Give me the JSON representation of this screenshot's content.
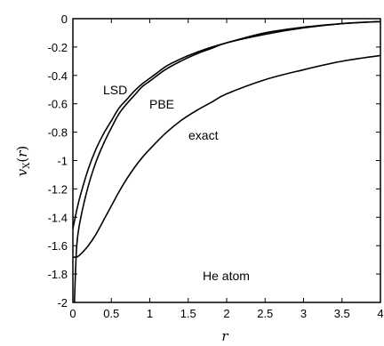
{
  "chart_data": {
    "type": "line",
    "xlabel": "r",
    "ylabel": "v_X(r)",
    "xlim": [
      0,
      4
    ],
    "ylim": [
      -2,
      0
    ],
    "grid": false,
    "legend": "none",
    "x_ticks": [
      "0",
      "0.5",
      "1",
      "1.5",
      "2",
      "2.5",
      "3",
      "3.5",
      "4"
    ],
    "y_ticks": [
      "0",
      "-0.2",
      "-0.4",
      "-0.6",
      "-0.8",
      "-1",
      "-1.2",
      "-1.4",
      "-1.6",
      "-1.8",
      "-2"
    ],
    "series": [
      {
        "name": "LSD",
        "x": [
          0,
          0.05,
          0.1,
          0.2,
          0.3,
          0.4,
          0.5,
          0.6,
          0.7,
          0.8,
          0.9,
          1.0,
          1.1,
          1.2,
          1.3,
          1.5,
          1.75,
          2.0,
          2.5,
          3.0,
          3.5,
          4.0
        ],
        "y": [
          -1.48,
          -1.35,
          -1.24,
          -1.06,
          -0.92,
          -0.81,
          -0.72,
          -0.63,
          -0.57,
          -0.51,
          -0.46,
          -0.42,
          -0.38,
          -0.34,
          -0.31,
          -0.26,
          -0.21,
          -0.17,
          -0.1,
          -0.06,
          -0.035,
          -0.02
        ]
      },
      {
        "name": "PBE",
        "x": [
          0.02,
          0.05,
          0.1,
          0.2,
          0.3,
          0.4,
          0.5,
          0.6,
          0.7,
          0.8,
          0.9,
          1.0,
          1.2,
          1.4,
          1.6,
          1.8,
          2.0,
          2.5,
          3.0,
          3.5,
          4.0
        ],
        "y": [
          -2.0,
          -1.6,
          -1.41,
          -1.18,
          -1.01,
          -0.88,
          -0.77,
          -0.67,
          -0.6,
          -0.54,
          -0.48,
          -0.44,
          -0.36,
          -0.3,
          -0.25,
          -0.21,
          -0.17,
          -0.11,
          -0.065,
          -0.035,
          -0.02
        ]
      },
      {
        "name": "exact",
        "x": [
          0,
          0.05,
          0.1,
          0.2,
          0.3,
          0.4,
          0.5,
          0.6,
          0.7,
          0.8,
          0.9,
          1.0,
          1.2,
          1.4,
          1.6,
          1.8,
          2.0,
          2.5,
          3.0,
          3.5,
          4.0
        ],
        "y": [
          -1.68,
          -1.68,
          -1.66,
          -1.6,
          -1.52,
          -1.42,
          -1.32,
          -1.22,
          -1.13,
          -1.05,
          -0.98,
          -0.92,
          -0.81,
          -0.72,
          -0.65,
          -0.59,
          -0.53,
          -0.43,
          -0.36,
          -0.3,
          -0.26
        ]
      }
    ],
    "annotations": {
      "lsd": "LSD",
      "pbe": "PBE",
      "exact": "exact",
      "system": "He atom"
    }
  }
}
